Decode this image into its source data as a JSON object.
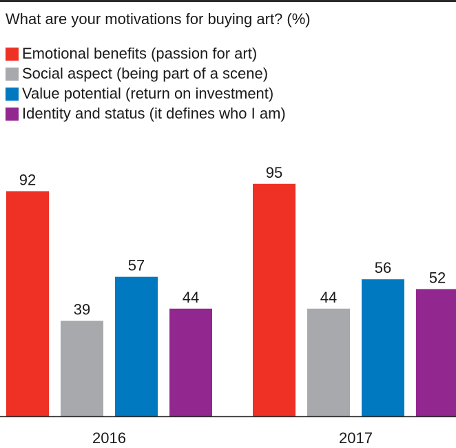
{
  "chart_data": {
    "type": "bar",
    "title": "What are your motivations for buying art? (%)",
    "categories": [
      "2016",
      "2017"
    ],
    "series": [
      {
        "name": "Emotional benefits (passion for art)",
        "color": "#ee3124",
        "values": [
          92,
          95
        ]
      },
      {
        "name": "Social aspect (being part of a scene)",
        "color": "#a7a9ac",
        "values": [
          39,
          44
        ]
      },
      {
        "name": "Value potential (return on investment)",
        "color": "#0079c1",
        "values": [
          57,
          56
        ]
      },
      {
        "name": "Identity and status (it defines who I am)",
        "color": "#92278f",
        "values": [
          44,
          52
        ]
      }
    ],
    "xlabel": "",
    "ylabel": "",
    "ylim": [
      0,
      100
    ],
    "grid": false,
    "legend": "top-left",
    "data_labels": true
  }
}
